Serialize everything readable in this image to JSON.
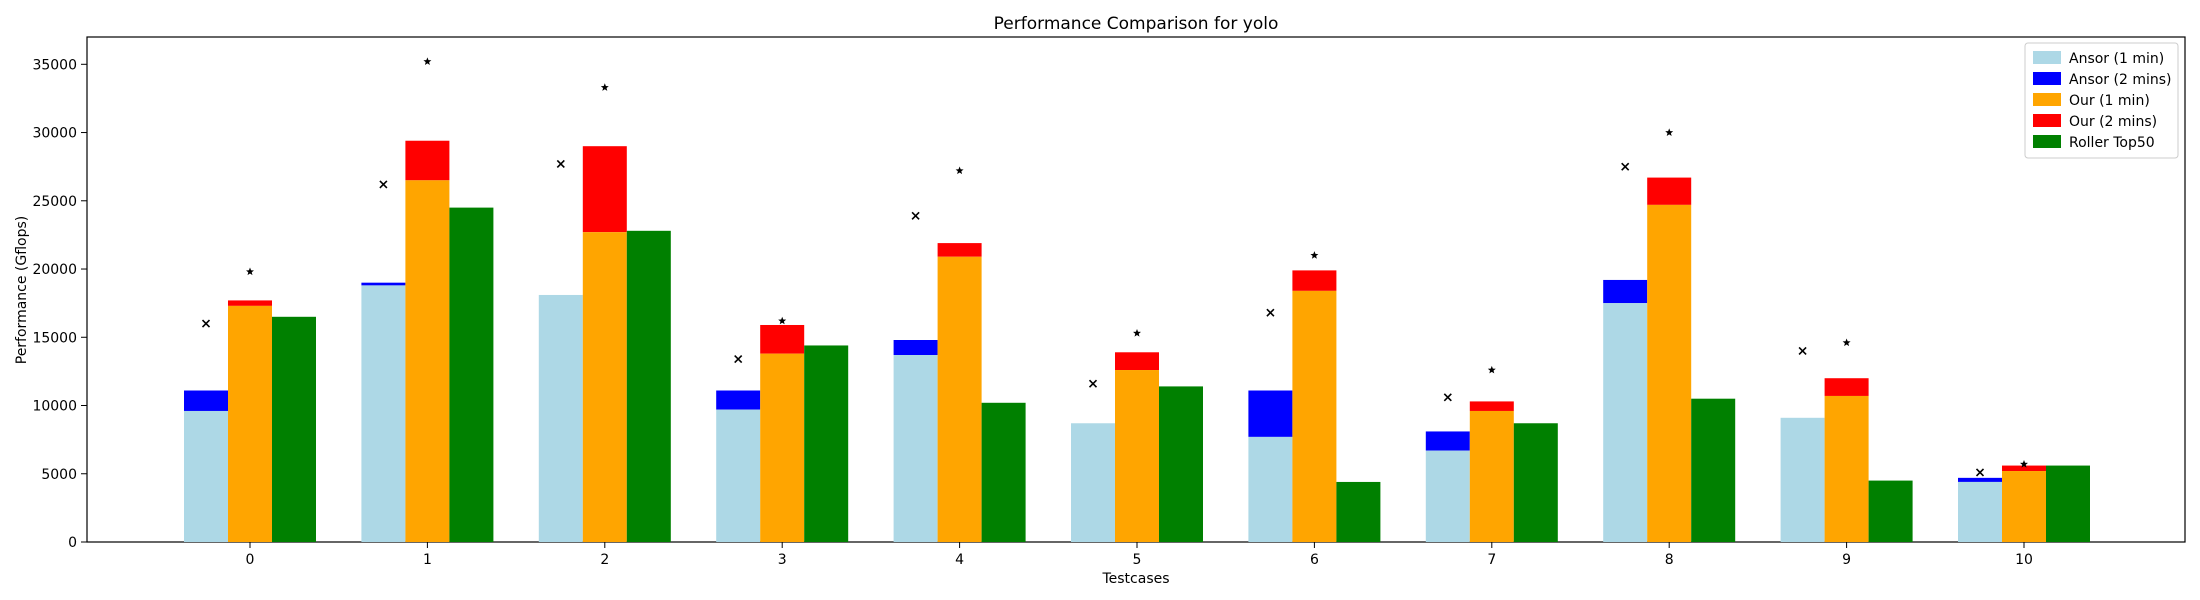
{
  "chart_data": {
    "type": "bar",
    "title": "Performance Comparison for yolo",
    "xlabel": "Testcases",
    "ylabel": "Performance (Gflops)",
    "categories": [
      "0",
      "1",
      "2",
      "3",
      "4",
      "5",
      "6",
      "7",
      "8",
      "9",
      "10"
    ],
    "ylim": [
      0,
      37000
    ],
    "yticks": [
      0,
      5000,
      10000,
      15000,
      20000,
      25000,
      30000,
      35000
    ],
    "legend_position": "top-right",
    "series": [
      {
        "name": "Ansor (1 min)",
        "color": "#add8e6",
        "group": "ansor",
        "stack": "base",
        "values": [
          9600,
          18800,
          18100,
          9700,
          13700,
          8700,
          7700,
          6700,
          17500,
          9100,
          4400
        ]
      },
      {
        "name": "Ansor (2 mins)",
        "color": "#0000ff",
        "group": "ansor",
        "stack": "top",
        "values": [
          11100,
          19000,
          18100,
          11100,
          14800,
          8700,
          11100,
          8100,
          19200,
          9100,
          4700
        ]
      },
      {
        "name": "Our (1 min)",
        "color": "#ffa500",
        "group": "our",
        "stack": "base",
        "values": [
          17300,
          26500,
          22700,
          13800,
          20900,
          12600,
          18400,
          9600,
          24700,
          10700,
          5200
        ]
      },
      {
        "name": "Our (2 mins)",
        "color": "#ff0000",
        "group": "our",
        "stack": "top",
        "values": [
          17700,
          29400,
          29000,
          15900,
          21900,
          13900,
          19900,
          10300,
          26700,
          12000,
          5600
        ]
      },
      {
        "name": "Roller Top50",
        "color": "#008000",
        "group": "roller",
        "stack": "single",
        "values": [
          16500,
          24500,
          22800,
          14400,
          10200,
          11400,
          4400,
          8700,
          10500,
          4500,
          5600
        ]
      }
    ],
    "markers": {
      "x_marker_values": [
        16000,
        26200,
        27700,
        13400,
        23900,
        11600,
        16800,
        10600,
        27500,
        14000,
        5100
      ],
      "star_marker_values": [
        19800,
        35200,
        33300,
        16200,
        27200,
        15300,
        21000,
        12600,
        30000,
        14600,
        5700
      ]
    }
  }
}
